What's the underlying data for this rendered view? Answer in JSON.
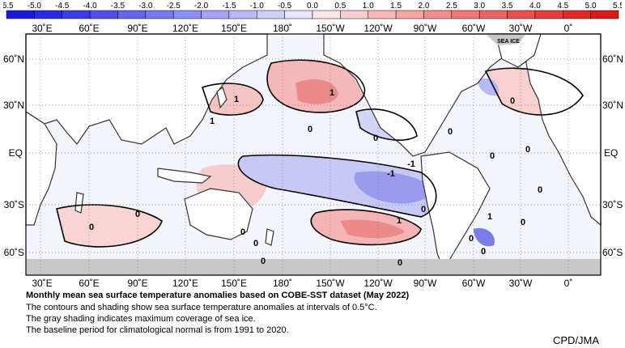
{
  "colorbar": {
    "ticks": [
      "-5.5",
      "-5.0",
      "-4.5",
      "-4.0",
      "-3.5",
      "-3.0",
      "-2.5",
      "-2.0",
      "-1.5",
      "-1.0",
      "-0.5",
      "0.0",
      "0.5",
      "1.0",
      "1.5",
      "2.0",
      "2.5",
      "3.0",
      "3.5",
      "4.0",
      "4.5",
      "5.0",
      "5.5"
    ],
    "colors": [
      "#1a1adb",
      "#2a2ae0",
      "#3c3ce5",
      "#4f4fe9",
      "#6464ed",
      "#7878f0",
      "#8e8ef3",
      "#a4a4f6",
      "#b9b9f8",
      "#cfcffb",
      "#e6e6fd",
      "#fde6e6",
      "#fbcfcf",
      "#f8b9b9",
      "#f6a4a4",
      "#f38e8e",
      "#f07878",
      "#ed6464",
      "#e94f4f",
      "#e53c3c",
      "#e02a2a",
      "#db1a1a"
    ]
  },
  "map": {
    "lon_labels": [
      "30˚E",
      "60˚E",
      "90˚E",
      "120˚E",
      "150˚E",
      "180˚",
      "150˚W",
      "120˚W",
      "90˚W",
      "60˚W",
      "30˚W",
      "0˚"
    ],
    "lat_labels_left": [
      "60˚N",
      "30˚N",
      "EQ",
      "30˚S",
      "60˚S"
    ],
    "lat_labels_right": [
      "60˚N",
      "30˚N",
      "EQ",
      "30˚S",
      "60˚S"
    ],
    "sea_ice_label": "SEA ICE",
    "contour_labels": [
      "1",
      "1",
      "1",
      "0",
      "0",
      "0",
      "0",
      "0",
      "-1",
      "-1",
      "1",
      "0",
      "0",
      "0",
      "0",
      "0",
      "0",
      "0",
      "0",
      "0",
      "0",
      "1",
      "0",
      "0"
    ]
  },
  "caption": {
    "title": "Monthly mean sea surface temperature anomalies based on COBE-SST dataset (May 2022)",
    "line1": "The contours and shading show sea surface temperature anomalies at intervals of 0.5°C.",
    "line2": "The gray shading indicates maximum coverage of sea ice.",
    "line3": "The baseline period for climatological normal is from 1991 to 2020."
  },
  "credit": "CPD/JMA"
}
